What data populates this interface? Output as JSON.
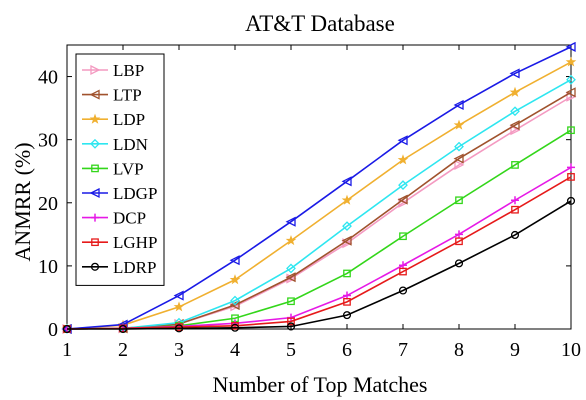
{
  "chart_data": {
    "type": "line",
    "title": "AT&T Database",
    "xlabel": "Number of Top Matches",
    "ylabel": "ANMRR (%)",
    "xlim": [
      1,
      10
    ],
    "ylim": [
      0,
      45
    ],
    "x": [
      1,
      2,
      3,
      4,
      5,
      6,
      7,
      8,
      9,
      10
    ],
    "xticks": [
      "1",
      "2",
      "3",
      "4",
      "5",
      "6",
      "7",
      "8",
      "9",
      "10"
    ],
    "yticks": [
      0,
      10,
      20,
      30,
      40
    ],
    "ytick_labels": [
      "0",
      "10",
      "20",
      "30",
      "40"
    ],
    "grid": false,
    "legend_position": "top-left",
    "series": [
      {
        "name": "LBP",
        "color": "#f49ac1",
        "marker": "triangle-right",
        "values": [
          0,
          0.1,
          0.8,
          3.6,
          8.0,
          13.6,
          20.0,
          26.0,
          31.5,
          36.8
        ]
      },
      {
        "name": "LTP",
        "color": "#a0522d",
        "marker": "triangle-left",
        "values": [
          0,
          0.1,
          0.8,
          3.8,
          8.2,
          14.0,
          20.5,
          27.0,
          32.3,
          37.5
        ]
      },
      {
        "name": "LDP",
        "color": "#f0b030",
        "marker": "star",
        "values": [
          0,
          0.6,
          3.5,
          7.8,
          14.0,
          20.4,
          26.8,
          32.3,
          37.5,
          42.3
        ]
      },
      {
        "name": "LDN",
        "color": "#2ee6f0",
        "marker": "diamond",
        "values": [
          0,
          0.1,
          1.0,
          4.5,
          9.6,
          16.3,
          22.8,
          28.9,
          34.5,
          39.5
        ]
      },
      {
        "name": "LVP",
        "color": "#33d61a",
        "marker": "square",
        "values": [
          0,
          0.1,
          0.5,
          1.7,
          4.4,
          8.8,
          14.7,
          20.4,
          26.0,
          31.5
        ]
      },
      {
        "name": "LDGP",
        "color": "#1a1ae6",
        "marker": "triangle-left",
        "values": [
          0,
          0.7,
          5.3,
          10.9,
          17.0,
          23.4,
          29.9,
          35.5,
          40.5,
          44.7
        ]
      },
      {
        "name": "DCP",
        "color": "#e619e6",
        "marker": "plus",
        "values": [
          0,
          0.1,
          0.4,
          0.9,
          1.8,
          5.3,
          10.1,
          15.0,
          20.4,
          25.6
        ]
      },
      {
        "name": "LGHP",
        "color": "#e61a1a",
        "marker": "square",
        "values": [
          0,
          0.1,
          0.3,
          0.5,
          1.2,
          4.3,
          9.1,
          13.9,
          18.9,
          24.1
        ]
      },
      {
        "name": "LDRP",
        "color": "#000000",
        "marker": "circle",
        "values": [
          0,
          0.0,
          0.1,
          0.2,
          0.4,
          2.2,
          6.1,
          10.4,
          14.9,
          20.3
        ]
      }
    ]
  }
}
